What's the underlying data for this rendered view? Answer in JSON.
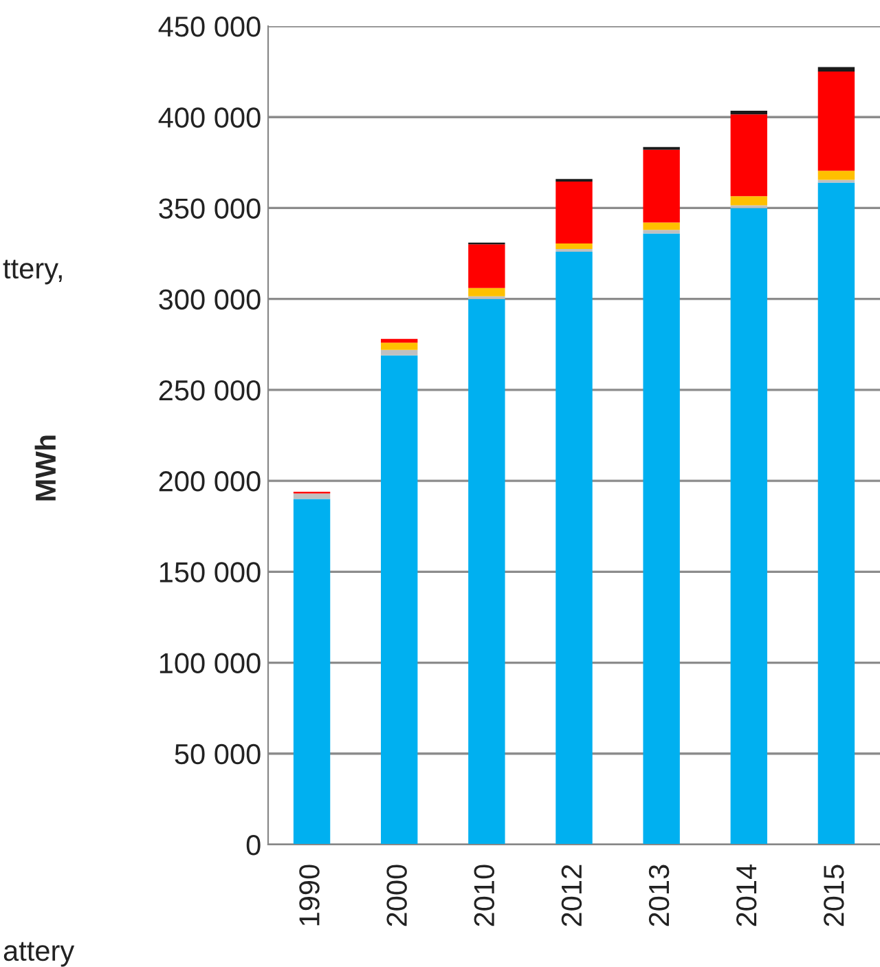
{
  "chart_data": {
    "type": "bar",
    "stacked": true,
    "ylabel": "MWh",
    "categories": [
      "1990",
      "2000",
      "2010",
      "2012",
      "2013",
      "2014",
      "2015"
    ],
    "series": [
      {
        "color": "#00b0f0",
        "values": [
          190000,
          269000,
          300000,
          326000,
          336000,
          350000,
          364000
        ]
      },
      {
        "color": "#c0c0c0",
        "values": [
          3000,
          3000,
          1500,
          1500,
          2000,
          1500,
          1500
        ]
      },
      {
        "color": "#ffc000",
        "values": [
          null,
          4000,
          4500,
          3000,
          4000,
          5000,
          5000
        ]
      },
      {
        "color": "#ff0000",
        "values": [
          1000,
          2000,
          24000,
          34000,
          40000,
          45000,
          54500
        ]
      },
      {
        "color": "#1a1a1a",
        "values": [
          null,
          null,
          1000,
          1500,
          1500,
          2000,
          2500
        ]
      }
    ],
    "ylim": [
      0,
      450000
    ],
    "yticks": [
      {
        "value": 0,
        "label": "0"
      },
      {
        "value": 50000,
        "label": "50 000"
      },
      {
        "value": 100000,
        "label": "100 000"
      },
      {
        "value": 150000,
        "label": "150 000"
      },
      {
        "value": 200000,
        "label": "200 000"
      },
      {
        "value": 250000,
        "label": "250 000"
      },
      {
        "value": 300000,
        "label": "300 000"
      },
      {
        "value": 350000,
        "label": "350 000"
      },
      {
        "value": 400000,
        "label": "400 000"
      },
      {
        "value": 450000,
        "label": "450 000"
      }
    ],
    "grid": "y",
    "annotations": [
      "ttery,",
      "attery"
    ]
  }
}
